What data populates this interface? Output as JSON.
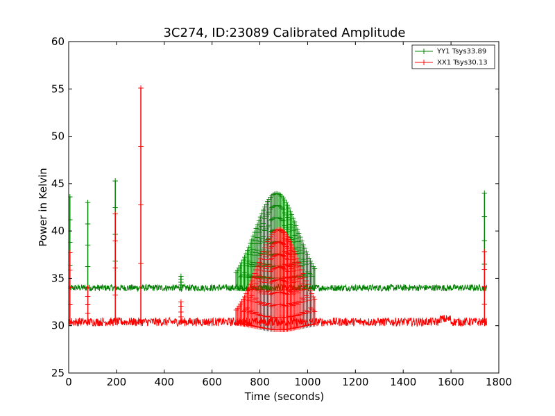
{
  "chart_data": {
    "type": "line",
    "title": "3C274, ID:23089 Calibrated Amplitude",
    "xlabel": "Time (seconds)",
    "ylabel": "Power in Kelvin",
    "xlim": [
      0,
      1800
    ],
    "ylim": [
      25,
      60
    ],
    "x_ticks": [
      0,
      200,
      400,
      600,
      800,
      1000,
      1200,
      1400,
      1600,
      1800
    ],
    "y_ticks": [
      25,
      30,
      35,
      40,
      45,
      50,
      55,
      60
    ],
    "x_tick_labels": [
      "0",
      "200",
      "400",
      "600",
      "800",
      "1000",
      "1200",
      "1400",
      "1600",
      "1800"
    ],
    "y_tick_labels": [
      "25",
      "30",
      "35",
      "40",
      "45",
      "50",
      "55",
      "60"
    ],
    "grid": false,
    "legend_position": "top-right",
    "marker": "+",
    "series": [
      {
        "name": "YY1 Tsys33.89",
        "color": "#008000",
        "baseline": 34.0,
        "baseline_x_range": [
          0,
          1750
        ],
        "spikes": [
          {
            "x": 5,
            "y_min": 34.0,
            "y_max": 43.6
          },
          {
            "x": 80,
            "y_min": 34.0,
            "y_max": 43.0
          },
          {
            "x": 195,
            "y_min": 34.0,
            "y_max": 45.3
          },
          {
            "x": 470,
            "y_min": 34.0,
            "y_max": 35.2
          },
          {
            "x": 1740,
            "y_min": 34.0,
            "y_max": 44.0
          }
        ],
        "bump": {
          "x_start": 700,
          "x_end": 1030,
          "x_center": 870,
          "peak": 44.0,
          "min_y": 34.0
        }
      },
      {
        "name": "XX1 Tsys30.13",
        "color": "#ff0000",
        "baseline": 30.4,
        "baseline_x_range": [
          0,
          1750
        ],
        "spikes": [
          {
            "x": 5,
            "y_min": 30.4,
            "y_max": 37.7
          },
          {
            "x": 80,
            "y_min": 30.4,
            "y_max": 34.0
          },
          {
            "x": 195,
            "y_min": 30.4,
            "y_max": 41.8
          },
          {
            "x": 302,
            "y_min": 30.4,
            "y_max": 55.1
          },
          {
            "x": 470,
            "y_min": 30.4,
            "y_max": 32.5
          },
          {
            "x": 1740,
            "y_min": 30.4,
            "y_max": 37.8
          }
        ],
        "bump": {
          "x_start": 700,
          "x_end": 1030,
          "x_center": 880,
          "peak": 40.2,
          "min_y": 30.4
        }
      }
    ]
  }
}
